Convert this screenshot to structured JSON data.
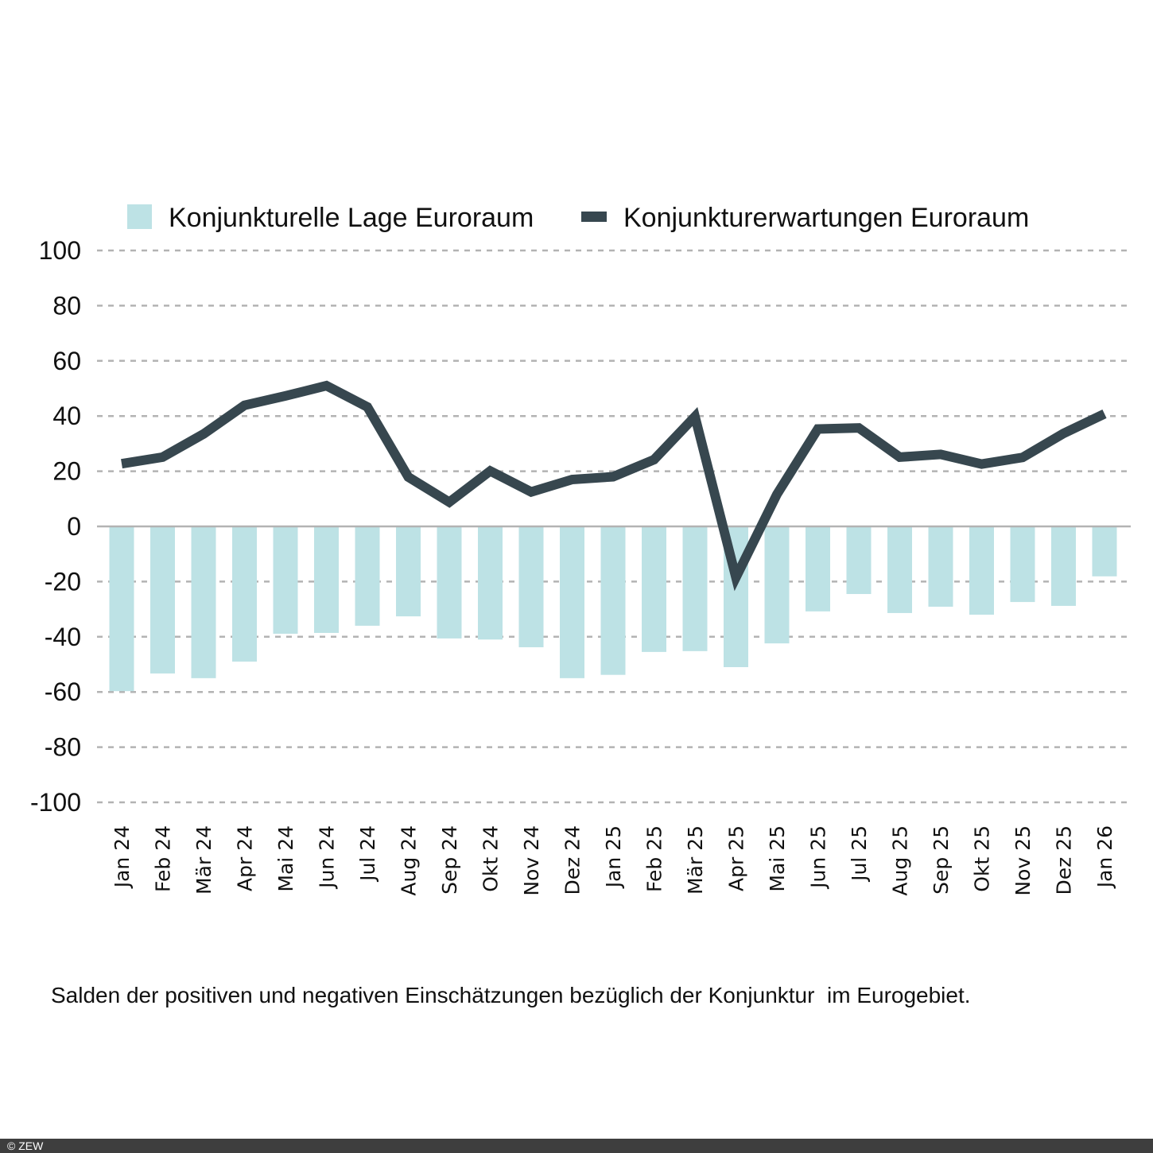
{
  "chart_data": {
    "type": "bar+line",
    "title": "",
    "xlabel": "",
    "ylabel": "",
    "ylim": [
      -100,
      100
    ],
    "yticks": [
      100,
      80,
      60,
      40,
      20,
      0,
      -20,
      -40,
      -60,
      -80,
      -100
    ],
    "grid": true,
    "legend_position": "top",
    "categories": [
      "Jan 24",
      "Feb 24",
      "Mär 24",
      "Apr 24",
      "Mai 24",
      "Jun 24",
      "Jul 24",
      "Aug 24",
      "Sep 24",
      "Okt 24",
      "Nov 24",
      "Dez 24",
      "Jan 25",
      "Feb 25",
      "Mär 25",
      "Apr 25",
      "Mai 25",
      "Jun 25",
      "Jul 25",
      "Aug 25",
      "Sep 25",
      "Okt 25",
      "Nov 25",
      "Dez 25",
      "Jan 26"
    ],
    "series": [
      {
        "name": "Konjunkturelle Lage Euroraum",
        "type": "bar",
        "color": "#bde2e5",
        "values": [
          -59.7,
          -53.3,
          -55.0,
          -49.0,
          -38.9,
          -38.6,
          -36.0,
          -32.6,
          -40.6,
          -41.0,
          -43.8,
          -55.0,
          -53.8,
          -45.5,
          -45.2,
          -51.0,
          -42.4,
          -30.8,
          -24.5,
          -31.4,
          -29.1,
          -32.0,
          -27.4,
          -28.8,
          -18.1
        ]
      },
      {
        "name": "Konjunkturerwartungen Euroraum",
        "type": "line",
        "color": "#37474f",
        "values": [
          22.7,
          25.1,
          33.5,
          43.9,
          47.3,
          51.0,
          43.3,
          17.9,
          8.8,
          20.1,
          12.5,
          17.0,
          18.0,
          24.2,
          39.8,
          -18.5,
          11.6,
          35.3,
          35.7,
          25.1,
          26.1,
          22.6,
          25.0,
          33.7,
          40.8
        ]
      }
    ],
    "caption": "Salden der positiven und negativen Einschätzungen bezüglich der Konjunktur  im Eurogebiet."
  },
  "footer": {
    "copyright": "© ZEW"
  },
  "colors": {
    "gridline": "#b3b3b3",
    "zero_line": "#b3b3b3",
    "footer_bg": "#3e3e3e"
  }
}
